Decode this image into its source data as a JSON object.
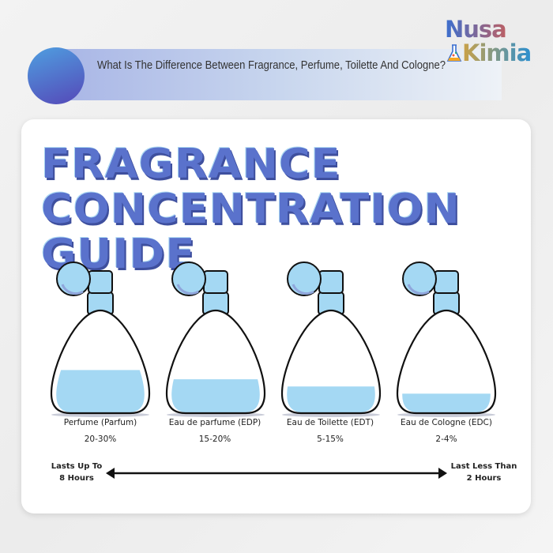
{
  "header": {
    "question": "What Is The Difference Between Fragrance, Perfume, Toilette And Cologne?",
    "logo": {
      "line1": "Nusa",
      "line2": "Kimia"
    }
  },
  "title": {
    "line1": "FRAGRANCE",
    "line2": "CONCENTRATION GUIDE"
  },
  "colors": {
    "title": "#5a72cc",
    "liquid": "#a4d8f3",
    "accent_circle": "#5548b8"
  },
  "bottles": [
    {
      "name": "Perfume (Parfum)",
      "concentration": "20-30%",
      "fill_level": 0.42
    },
    {
      "name": "Eau de parfume (EDP)",
      "concentration": "15-20%",
      "fill_level": 0.33
    },
    {
      "name": "Eau de Toilette (EDT)",
      "concentration": "5-15%",
      "fill_level": 0.26
    },
    {
      "name": "Eau de Cologne (EDC)",
      "concentration": "2-4%",
      "fill_level": 0.19
    }
  ],
  "scale": {
    "left": "Lasts Up To 8 Hours",
    "right": "Last Less Than 2 Hours"
  }
}
